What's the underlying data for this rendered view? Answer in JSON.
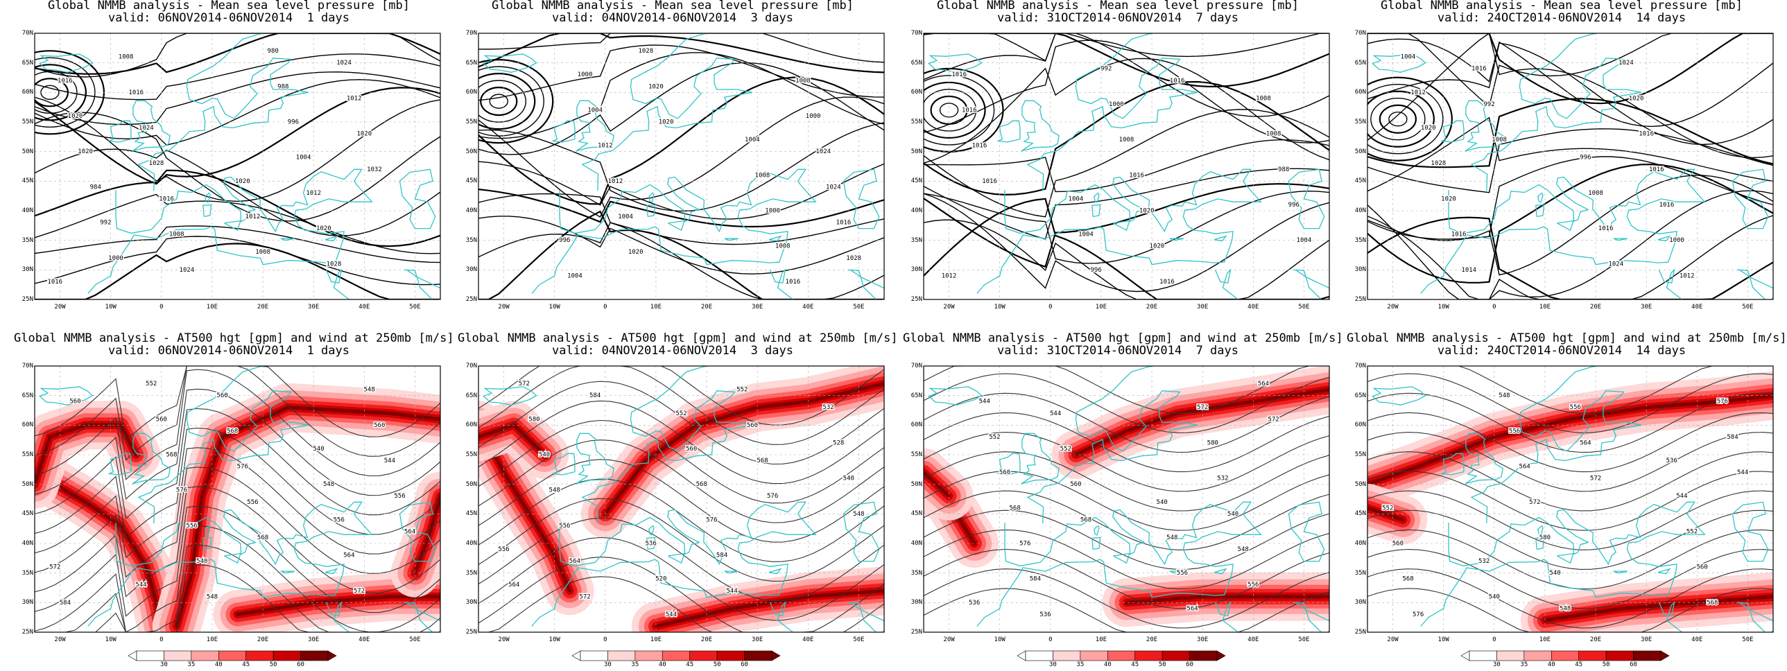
{
  "colors": {
    "coast": "#2ec4c8",
    "contour": "#000000",
    "grid": "#b0b0b0",
    "wind_scale": [
      "#ffffff",
      "#ffd6d6",
      "#ffa3a3",
      "#ff6060",
      "#ee1c1c",
      "#c80000",
      "#7a0000"
    ]
  },
  "axis": {
    "lat_labels": [
      "70N",
      "65N",
      "60N",
      "55N",
      "50N",
      "45N",
      "40N",
      "35N",
      "30N",
      "25N"
    ],
    "lon_labels": [
      "20W",
      "10W",
      "0",
      "10E",
      "20E",
      "30E",
      "40E",
      "50E"
    ]
  },
  "colorbar": {
    "labels": [
      "30",
      "35",
      "40",
      "45",
      "50",
      "60"
    ]
  },
  "panels": [
    {
      "id": "mslp-1d",
      "title": "Global NMMB analysis - Mean sea level pressure [mb]",
      "valid": "valid: 06NOV2014-06NOV2014  1 days",
      "contour_labels": [
        "1016",
        "1020",
        "1016",
        "1012",
        "1020",
        "1008",
        "1020",
        "980",
        "984",
        "988",
        "992",
        "996",
        "1000",
        "1004",
        "1008",
        "1012",
        "1016",
        "1020",
        "1024",
        "1028",
        "1028",
        "1024",
        "1016",
        "1012",
        "1008",
        "1020",
        "1024",
        "1032"
      ]
    },
    {
      "id": "mslp-3d",
      "title": "Global NMMB analysis - Mean sea level pressure [mb]",
      "valid": "valid: 04NOV2014-06NOV2014  3 days",
      "contour_labels": [
        "996",
        "1004",
        "1004",
        "1008",
        "1000",
        "1000",
        "1004",
        "1008",
        "1012",
        "1016",
        "1012",
        "1008",
        "1004",
        "1000",
        "1020",
        "1024",
        "1028",
        "1024",
        "1020",
        "1016",
        "1020",
        "1028"
      ]
    },
    {
      "id": "mslp-7d",
      "title": "Global NMMB analysis - Mean sea level pressure [mb]",
      "valid": "valid: 31OCT2014-06NOV2014  7 days",
      "contour_labels": [
        "1004",
        "1008",
        "1004",
        "1008",
        "996",
        "988",
        "992",
        "996",
        "1000",
        "1004",
        "1008",
        "1012",
        "1016",
        "1016",
        "1020",
        "1016",
        "1020",
        "1016",
        "1016",
        "1016",
        "1016"
      ]
    },
    {
      "id": "mslp-14d",
      "title": "Global NMMB analysis - Mean sea level pressure [mb]",
      "valid": "valid: 24OCT2014-06NOV2014  14 days",
      "contour_labels": [
        "996",
        "1004",
        "1008",
        "1012",
        "1016",
        "1020",
        "1024",
        "1028",
        "1024",
        "1020",
        "1020",
        "1016",
        "1016",
        "1014",
        "1016",
        "1016",
        "1016",
        "992",
        "1000",
        "1008",
        "1012"
      ]
    },
    {
      "id": "z500-1d",
      "title": "Global NMMB analysis - AT500 hgt [gpm] and wind at 250mb [m/s]",
      "valid": "valid: 06NOV2014-06NOV2014  1 days",
      "contour_labels": [
        "540",
        "544",
        "548",
        "552",
        "556",
        "560",
        "564",
        "568",
        "572",
        "576",
        "548",
        "556",
        "560",
        "540",
        "544",
        "548",
        "556",
        "560",
        "564",
        "568",
        "572",
        "576",
        "584",
        "556",
        "560",
        "568"
      ]
    },
    {
      "id": "z500-3d",
      "title": "Global NMMB analysis - AT500 hgt [gpm] and wind at 250mb [m/s]",
      "valid": "valid: 04NOV2014-06NOV2014  3 days",
      "contour_labels": [
        "532",
        "536",
        "528",
        "520",
        "540",
        "544",
        "548",
        "552",
        "556",
        "560",
        "564",
        "568",
        "572",
        "576",
        "580",
        "584",
        "540",
        "544",
        "548",
        "552",
        "556",
        "560",
        "564",
        "568",
        "572",
        "576",
        "584"
      ]
    },
    {
      "id": "z500-7d",
      "title": "Global NMMB analysis - AT500 hgt [gpm] and wind at 250mb [m/s]",
      "valid": "valid: 31OCT2014-06NOV2014  7 days",
      "contour_labels": [
        "536",
        "540",
        "544",
        "548",
        "552",
        "556",
        "560",
        "564",
        "568",
        "572",
        "576",
        "580",
        "584",
        "532",
        "536",
        "540",
        "544",
        "548",
        "552",
        "556",
        "560",
        "564",
        "568",
        "572"
      ]
    },
    {
      "id": "z500-14d",
      "title": "Global NMMB analysis - AT500 hgt [gpm] and wind at 250mb [m/s]",
      "valid": "valid: 24OCT2014-06NOV2014  14 days",
      "contour_labels": [
        "532",
        "536",
        "540",
        "544",
        "548",
        "552",
        "556",
        "560",
        "564",
        "568",
        "572",
        "576",
        "580",
        "584",
        "540",
        "544",
        "548",
        "552",
        "556",
        "560",
        "564",
        "568",
        "572",
        "576"
      ]
    }
  ]
}
